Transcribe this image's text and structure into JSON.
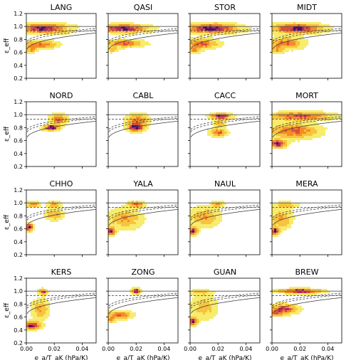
{
  "figure": {
    "ylabel": "ε_eff",
    "xlabel": "e_a/T_aK (hPa/K)",
    "xticks": [
      "0.00",
      "0.02",
      "0.04"
    ],
    "yticks": [
      "0.2",
      "0.4",
      "0.6",
      "0.8",
      "1.0",
      "1.2"
    ]
  },
  "chart_data": [
    {
      "type": "heatmap",
      "title": "LANG",
      "xlim": [
        0,
        0.05
      ],
      "ylim": [
        0.2,
        1.2
      ],
      "hlines": [
        1.0,
        0.93
      ],
      "clusters": [
        {
          "x": 0.012,
          "y": 0.97,
          "sx": 0.012,
          "sy": 0.05,
          "w": 1.0
        },
        {
          "x": 0.01,
          "y": 0.72,
          "sx": 0.008,
          "sy": 0.04,
          "w": 0.7
        },
        {
          "x": 0.003,
          "y": 0.64,
          "sx": 0.003,
          "sy": 0.03,
          "w": 0.5
        }
      ]
    },
    {
      "type": "heatmap",
      "title": "QASI",
      "xlim": [
        0,
        0.05
      ],
      "ylim": [
        0.2,
        1.2
      ],
      "hlines": [
        1.0,
        0.93
      ],
      "clusters": [
        {
          "x": 0.01,
          "y": 0.97,
          "sx": 0.012,
          "sy": 0.04,
          "w": 1.0
        },
        {
          "x": 0.012,
          "y": 0.74,
          "sx": 0.009,
          "sy": 0.04,
          "w": 0.7
        },
        {
          "x": 0.003,
          "y": 0.64,
          "sx": 0.003,
          "sy": 0.03,
          "w": 0.4
        }
      ]
    },
    {
      "type": "heatmap",
      "title": "STOR",
      "xlim": [
        0,
        0.05
      ],
      "ylim": [
        0.2,
        1.2
      ],
      "hlines": [
        1.0,
        0.93
      ],
      "clusters": [
        {
          "x": 0.015,
          "y": 0.97,
          "sx": 0.013,
          "sy": 0.05,
          "w": 1.0
        },
        {
          "x": 0.008,
          "y": 0.73,
          "sx": 0.008,
          "sy": 0.05,
          "w": 0.7
        },
        {
          "x": 0.003,
          "y": 0.63,
          "sx": 0.003,
          "sy": 0.03,
          "w": 0.5
        }
      ]
    },
    {
      "type": "heatmap",
      "title": "MIDT",
      "xlim": [
        0,
        0.05
      ],
      "ylim": [
        0.2,
        1.2
      ],
      "hlines": [
        1.0,
        0.93
      ],
      "clusters": [
        {
          "x": 0.018,
          "y": 0.97,
          "sx": 0.012,
          "sy": 0.05,
          "w": 1.0
        },
        {
          "x": 0.01,
          "y": 0.74,
          "sx": 0.008,
          "sy": 0.06,
          "w": 0.7
        },
        {
          "x": 0.004,
          "y": 0.63,
          "sx": 0.003,
          "sy": 0.03,
          "w": 0.5
        }
      ]
    },
    {
      "type": "heatmap",
      "title": "NORD",
      "xlim": [
        0,
        0.05
      ],
      "ylim": [
        0.2,
        1.2
      ],
      "hlines": [
        1.0,
        0.93
      ],
      "clusters": [
        {
          "x": 0.018,
          "y": 0.8,
          "sx": 0.004,
          "sy": 0.03,
          "w": 1.0
        },
        {
          "x": 0.023,
          "y": 0.93,
          "sx": 0.004,
          "sy": 0.05,
          "w": 0.7
        }
      ]
    },
    {
      "type": "heatmap",
      "title": "CABL",
      "xlim": [
        0,
        0.05
      ],
      "ylim": [
        0.2,
        1.2
      ],
      "hlines": [
        1.0,
        0.93
      ],
      "clusters": [
        {
          "x": 0.02,
          "y": 0.8,
          "sx": 0.004,
          "sy": 0.04,
          "w": 1.0
        },
        {
          "x": 0.021,
          "y": 0.92,
          "sx": 0.005,
          "sy": 0.06,
          "w": 0.7
        }
      ]
    },
    {
      "type": "heatmap",
      "title": "CACC",
      "xlim": [
        0,
        0.05
      ],
      "ylim": [
        0.2,
        1.2
      ],
      "hlines": [
        1.0,
        0.93
      ],
      "clusters": [
        {
          "x": 0.022,
          "y": 0.98,
          "sx": 0.005,
          "sy": 0.03,
          "w": 1.0
        },
        {
          "x": 0.02,
          "y": 0.72,
          "sx": 0.004,
          "sy": 0.04,
          "w": 0.7
        },
        {
          "x": 0.021,
          "y": 0.86,
          "sx": 0.003,
          "sy": 0.05,
          "w": 0.4
        }
      ]
    },
    {
      "type": "heatmap",
      "title": "MORT",
      "xlim": [
        0,
        0.05
      ],
      "ylim": [
        0.2,
        1.2
      ],
      "hlines": [
        1.0,
        0.93
      ],
      "clusters": [
        {
          "x": 0.004,
          "y": 0.55,
          "sx": 0.004,
          "sy": 0.04,
          "w": 1.0
        },
        {
          "x": 0.015,
          "y": 0.75,
          "sx": 0.012,
          "sy": 0.08,
          "w": 0.7
        },
        {
          "x": 0.02,
          "y": 0.98,
          "sx": 0.015,
          "sy": 0.04,
          "w": 0.8
        }
      ]
    },
    {
      "type": "heatmap",
      "title": "CHHO",
      "xlim": [
        0,
        0.05
      ],
      "ylim": [
        0.2,
        1.2
      ],
      "hlines": [
        1.0,
        0.93
      ],
      "clusters": [
        {
          "x": 0.002,
          "y": 0.62,
          "sx": 0.002,
          "sy": 0.04,
          "w": 1.0
        },
        {
          "x": 0.005,
          "y": 0.98,
          "sx": 0.003,
          "sy": 0.03,
          "w": 0.6
        },
        {
          "x": 0.02,
          "y": 0.98,
          "sx": 0.003,
          "sy": 0.03,
          "w": 0.6
        },
        {
          "x": 0.02,
          "y": 0.82,
          "sx": 0.004,
          "sy": 0.06,
          "w": 0.5
        }
      ]
    },
    {
      "type": "heatmap",
      "title": "YALA",
      "xlim": [
        0,
        0.05
      ],
      "ylim": [
        0.2,
        1.2
      ],
      "hlines": [
        1.0,
        0.93
      ],
      "clusters": [
        {
          "x": 0.002,
          "y": 0.56,
          "sx": 0.002,
          "sy": 0.04,
          "w": 1.0
        },
        {
          "x": 0.02,
          "y": 0.98,
          "sx": 0.004,
          "sy": 0.03,
          "w": 0.7
        },
        {
          "x": 0.012,
          "y": 0.75,
          "sx": 0.008,
          "sy": 0.1,
          "w": 0.5
        }
      ]
    },
    {
      "type": "heatmap",
      "title": "NAUL",
      "xlim": [
        0,
        0.05
      ],
      "ylim": [
        0.2,
        1.2
      ],
      "hlines": [
        1.0,
        0.93
      ],
      "clusters": [
        {
          "x": 0.002,
          "y": 0.56,
          "sx": 0.002,
          "sy": 0.04,
          "w": 1.0
        },
        {
          "x": 0.02,
          "y": 0.98,
          "sx": 0.003,
          "sy": 0.03,
          "w": 0.5
        },
        {
          "x": 0.01,
          "y": 0.78,
          "sx": 0.007,
          "sy": 0.1,
          "w": 0.5
        }
      ]
    },
    {
      "type": "heatmap",
      "title": "MERA",
      "xlim": [
        0,
        0.05
      ],
      "ylim": [
        0.2,
        1.2
      ],
      "hlines": [
        1.0,
        0.93
      ],
      "clusters": [
        {
          "x": 0.002,
          "y": 0.56,
          "sx": 0.002,
          "sy": 0.04,
          "w": 1.0
        },
        {
          "x": 0.007,
          "y": 0.75,
          "sx": 0.005,
          "sy": 0.1,
          "w": 0.5
        },
        {
          "x": 0.01,
          "y": 0.97,
          "sx": 0.006,
          "sy": 0.03,
          "w": 0.4
        }
      ]
    },
    {
      "type": "heatmap",
      "title": "KERS",
      "xlim": [
        0,
        0.05
      ],
      "ylim": [
        0.2,
        1.2
      ],
      "hlines": [
        1.0,
        0.93
      ],
      "clusters": [
        {
          "x": 0.004,
          "y": 0.47,
          "sx": 0.004,
          "sy": 0.04,
          "w": 1.0
        },
        {
          "x": 0.012,
          "y": 0.99,
          "sx": 0.002,
          "sy": 0.03,
          "w": 0.8
        },
        {
          "x": 0.01,
          "y": 0.72,
          "sx": 0.004,
          "sy": 0.1,
          "w": 0.5
        }
      ]
    },
    {
      "type": "heatmap",
      "title": "ZONG",
      "xlim": [
        0,
        0.05
      ],
      "ylim": [
        0.2,
        1.2
      ],
      "hlines": [
        1.0,
        0.93
      ],
      "clusters": [
        {
          "x": 0.02,
          "y": 1.0,
          "sx": 0.002,
          "sy": 0.03,
          "w": 1.0
        },
        {
          "x": 0.008,
          "y": 0.63,
          "sx": 0.006,
          "sy": 0.04,
          "w": 0.7
        },
        {
          "x": 0.002,
          "y": 0.55,
          "sx": 0.002,
          "sy": 0.03,
          "w": 0.5
        }
      ]
    },
    {
      "type": "heatmap",
      "title": "GUAN",
      "xlim": [
        0,
        0.05
      ],
      "ylim": [
        0.2,
        1.2
      ],
      "hlines": [
        1.0,
        0.93
      ],
      "clusters": [
        {
          "x": 0.002,
          "y": 0.53,
          "sx": 0.002,
          "sy": 0.04,
          "w": 1.0
        },
        {
          "x": 0.01,
          "y": 0.75,
          "sx": 0.006,
          "sy": 0.12,
          "w": 0.4
        },
        {
          "x": 0.008,
          "y": 0.98,
          "sx": 0.006,
          "sy": 0.03,
          "w": 0.3
        }
      ]
    },
    {
      "type": "heatmap",
      "title": "BREW",
      "xlim": [
        0,
        0.05
      ],
      "ylim": [
        0.2,
        1.2
      ],
      "hlines": [
        1.0,
        0.93
      ],
      "clusters": [
        {
          "x": 0.02,
          "y": 1.0,
          "sx": 0.01,
          "sy": 0.025,
          "w": 1.0
        },
        {
          "x": 0.008,
          "y": 0.72,
          "sx": 0.007,
          "sy": 0.05,
          "w": 0.8
        },
        {
          "x": 0.003,
          "y": 0.65,
          "sx": 0.003,
          "sy": 0.03,
          "w": 0.5
        }
      ]
    }
  ]
}
